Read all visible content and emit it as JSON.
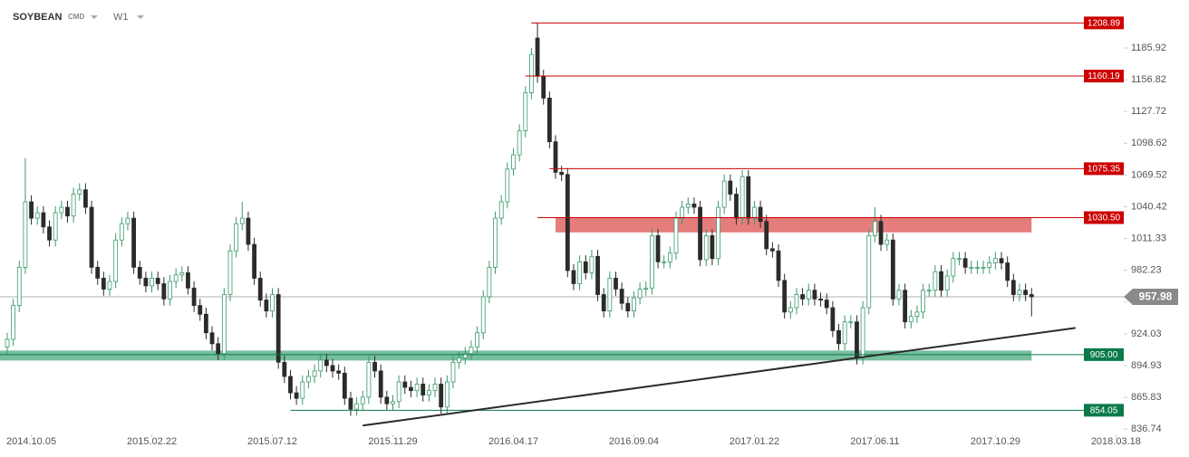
{
  "header": {
    "symbol": "SOYBEAN",
    "market": "CMD",
    "timeframe": "W1"
  },
  "chart_data": {
    "type": "candlestick",
    "up_color": "#3a9a6a",
    "down_color": "#2b2b2b",
    "xlim": [
      -1.2,
      185.3
    ],
    "xticks": [
      {
        "value": 4,
        "label": "2014.10.05"
      },
      {
        "value": 24,
        "label": "2015.02.22"
      },
      {
        "value": 44,
        "label": "2015.07.12"
      },
      {
        "value": 64,
        "label": "2015.11.29"
      },
      {
        "value": 84,
        "label": "2016.04.17"
      },
      {
        "value": 104,
        "label": "2016.09.04"
      },
      {
        "value": 124,
        "label": "2017.01.22"
      },
      {
        "value": 144,
        "label": "2017.06.11"
      },
      {
        "value": 164,
        "label": "2017.10.29"
      },
      {
        "value": 184,
        "label": "2018.03.18"
      }
    ],
    "ylim": [
      831.94,
      1229.88
    ],
    "yticks": [
      1185.92,
      1156.82,
      1127.72,
      1098.62,
      1069.52,
      1040.42,
      1011.33,
      982.23,
      953.13,
      924.03,
      894.93,
      865.83,
      836.74
    ],
    "candles": [
      [
        912,
        925,
        906,
        919
      ],
      [
        919,
        956,
        913,
        950
      ],
      [
        950,
        991,
        944,
        985
      ],
      [
        985,
        1085,
        979,
        1045
      ],
      [
        1045,
        1051,
        1024,
        1030
      ],
      [
        1030,
        1041,
        1024,
        1035
      ],
      [
        1035,
        1041,
        1016,
        1022
      ],
      [
        1022,
        1028,
        1004,
        1010
      ],
      [
        1010,
        1041,
        1004,
        1035
      ],
      [
        1035,
        1046,
        1029,
        1040
      ],
      [
        1040,
        1046,
        1026,
        1032
      ],
      [
        1032,
        1058,
        1026,
        1052
      ],
      [
        1052,
        1062,
        1046,
        1056
      ],
      [
        1056,
        1062,
        1034,
        1040
      ],
      [
        1040,
        1046,
        979,
        985
      ],
      [
        985,
        991,
        969,
        975
      ],
      [
        975,
        981,
        959,
        965
      ],
      [
        965,
        978,
        959,
        972
      ],
      [
        972,
        1016,
        966,
        1010
      ],
      [
        1010,
        1031,
        1004,
        1025
      ],
      [
        1025,
        1036,
        1019,
        1030
      ],
      [
        1030,
        1036,
        979,
        985
      ],
      [
        985,
        991,
        969,
        975
      ],
      [
        975,
        981,
        962,
        968
      ],
      [
        968,
        981,
        962,
        975
      ],
      [
        975,
        981,
        964,
        970
      ],
      [
        970,
        976,
        950,
        956
      ],
      [
        956,
        978,
        950,
        972
      ],
      [
        972,
        984,
        966,
        978
      ],
      [
        978,
        986,
        972,
        980
      ],
      [
        980,
        986,
        960,
        966
      ],
      [
        966,
        972,
        944,
        950
      ],
      [
        950,
        956,
        936,
        942
      ],
      [
        942,
        948,
        919,
        925
      ],
      [
        925,
        931,
        909,
        915
      ],
      [
        915,
        921,
        900,
        906
      ],
      [
        906,
        966,
        900,
        960
      ],
      [
        960,
        1006,
        954,
        1000
      ],
      [
        1000,
        1031,
        994,
        1025
      ],
      [
        1025,
        1045,
        1019,
        1030
      ],
      [
        1030,
        1036,
        1000,
        1006
      ],
      [
        1006,
        1012,
        969,
        975
      ],
      [
        975,
        981,
        949,
        955
      ],
      [
        955,
        961,
        939,
        945
      ],
      [
        945,
        966,
        939,
        960
      ],
      [
        960,
        966,
        892,
        898
      ],
      [
        898,
        904,
        879,
        885
      ],
      [
        885,
        891,
        864,
        870
      ],
      [
        870,
        876,
        859,
        865
      ],
      [
        865,
        886,
        859,
        880
      ],
      [
        880,
        891,
        874,
        885
      ],
      [
        885,
        896,
        879,
        890
      ],
      [
        890,
        906,
        884,
        900
      ],
      [
        900,
        906,
        889,
        895
      ],
      [
        895,
        901,
        884,
        890
      ],
      [
        890,
        896,
        882,
        888
      ],
      [
        888,
        894,
        859,
        865
      ],
      [
        865,
        871,
        849,
        855
      ],
      [
        855,
        866,
        849,
        860
      ],
      [
        860,
        872,
        854,
        866
      ],
      [
        866,
        904,
        860,
        898
      ],
      [
        898,
        904,
        884,
        890
      ],
      [
        890,
        896,
        860,
        866
      ],
      [
        866,
        872,
        854,
        860
      ],
      [
        860,
        868,
        854,
        862
      ],
      [
        862,
        886,
        856,
        880
      ],
      [
        880,
        886,
        869,
        875
      ],
      [
        875,
        881,
        866,
        872
      ],
      [
        872,
        884,
        866,
        878
      ],
      [
        878,
        884,
        862,
        868
      ],
      [
        868,
        878,
        862,
        872
      ],
      [
        872,
        884,
        866,
        878
      ],
      [
        878,
        884,
        851,
        857
      ],
      [
        857,
        886,
        851,
        880
      ],
      [
        880,
        904,
        874,
        898
      ],
      [
        898,
        908,
        892,
        902
      ],
      [
        902,
        912,
        896,
        906
      ],
      [
        906,
        918,
        900,
        912
      ],
      [
        912,
        931,
        906,
        925
      ],
      [
        925,
        964,
        919,
        958
      ],
      [
        958,
        991,
        952,
        985
      ],
      [
        985,
        1036,
        979,
        1030
      ],
      [
        1030,
        1051,
        1024,
        1045
      ],
      [
        1045,
        1081,
        1039,
        1075
      ],
      [
        1075,
        1094,
        1069,
        1088
      ],
      [
        1088,
        1116,
        1082,
        1110
      ],
      [
        1110,
        1151,
        1104,
        1145
      ],
      [
        1145,
        1186,
        1139,
        1180
      ],
      [
        1195,
        1208.89,
        1154,
        1160
      ],
      [
        1160,
        1166,
        1134,
        1140
      ],
      [
        1140,
        1146,
        1094,
        1100
      ],
      [
        1100,
        1106,
        1066,
        1072
      ],
      [
        1072,
        1078,
        1064,
        1070
      ],
      [
        1070,
        1076,
        976,
        982
      ],
      [
        982,
        988,
        964,
        970
      ],
      [
        970,
        996,
        964,
        990
      ],
      [
        990,
        996,
        974,
        980
      ],
      [
        980,
        1001,
        974,
        995
      ],
      [
        995,
        1001,
        954,
        960
      ],
      [
        960,
        966,
        939,
        945
      ],
      [
        945,
        981,
        939,
        975
      ],
      [
        975,
        981,
        959,
        965
      ],
      [
        965,
        971,
        946,
        952
      ],
      [
        952,
        958,
        939,
        945
      ],
      [
        945,
        963,
        939,
        957
      ],
      [
        957,
        971,
        951,
        965
      ],
      [
        965,
        972,
        959,
        966
      ],
      [
        966,
        1020,
        960,
        1014
      ],
      [
        1014,
        1020,
        984,
        990
      ],
      [
        990,
        996,
        984,
        990
      ],
      [
        990,
        1004,
        984,
        998
      ],
      [
        998,
        1036,
        992,
        1030
      ],
      [
        1030,
        1046,
        1024,
        1040
      ],
      [
        1040,
        1049,
        1034,
        1043
      ],
      [
        1043,
        1049,
        1034,
        1040
      ],
      [
        1040,
        1046,
        986,
        992
      ],
      [
        992,
        1020,
        986,
        1014
      ],
      [
        1014,
        1020,
        987,
        993
      ],
      [
        993,
        1046,
        987,
        1040
      ],
      [
        1040,
        1070,
        1034,
        1064
      ],
      [
        1064,
        1070,
        1046,
        1052
      ],
      [
        1052,
        1058,
        1024,
        1030
      ],
      [
        1030,
        1074,
        1024,
        1068
      ],
      [
        1068,
        1074,
        1024,
        1030
      ],
      [
        1030,
        1046,
        1024,
        1040
      ],
      [
        1040,
        1046,
        1021,
        1027
      ],
      [
        1027,
        1033,
        996,
        1002
      ],
      [
        1002,
        1008,
        994,
        1000
      ],
      [
        1000,
        1006,
        967,
        973
      ],
      [
        973,
        979,
        938,
        944
      ],
      [
        944,
        954,
        938,
        948
      ],
      [
        948,
        966,
        942,
        960
      ],
      [
        960,
        966,
        950,
        956
      ],
      [
        956,
        970,
        950,
        964
      ],
      [
        964,
        970,
        950,
        956
      ],
      [
        956,
        962,
        949,
        955
      ],
      [
        955,
        961,
        942,
        948
      ],
      [
        948,
        954,
        921,
        927
      ],
      [
        927,
        933,
        909,
        915
      ],
      [
        915,
        941,
        909,
        935
      ],
      [
        935,
        941,
        929,
        935
      ],
      [
        935,
        941,
        896,
        902
      ],
      [
        902,
        954,
        896,
        948
      ],
      [
        948,
        1020,
        942,
        1014
      ],
      [
        1014,
        1040,
        1008,
        1027
      ],
      [
        1027,
        1033,
        1000,
        1006
      ],
      [
        1006,
        1016,
        1000,
        1010
      ],
      [
        1010,
        1016,
        950,
        956
      ],
      [
        956,
        970,
        950,
        964
      ],
      [
        964,
        970,
        929,
        935
      ],
      [
        935,
        946,
        929,
        940
      ],
      [
        940,
        950,
        934,
        944
      ],
      [
        944,
        970,
        938,
        964
      ],
      [
        964,
        970,
        958,
        964
      ],
      [
        964,
        987,
        958,
        981
      ],
      [
        981,
        987,
        958,
        964
      ],
      [
        964,
        983,
        958,
        977
      ],
      [
        977,
        999,
        971,
        993
      ],
      [
        993,
        999,
        987,
        993
      ],
      [
        993,
        999,
        979,
        985
      ],
      [
        985,
        991,
        979,
        985
      ],
      [
        985,
        991,
        979,
        985
      ],
      [
        985,
        991,
        979,
        985
      ],
      [
        985,
        995,
        979,
        989
      ],
      [
        989,
        999,
        983,
        993
      ],
      [
        993,
        999,
        983,
        989
      ],
      [
        989,
        995,
        967,
        973
      ],
      [
        973,
        979,
        954,
        960
      ],
      [
        960,
        970,
        954,
        964
      ],
      [
        964,
        970,
        954,
        960
      ],
      [
        960,
        966,
        940,
        957.98
      ]
    ],
    "levels": [
      {
        "value": 1208.89,
        "color": "#cc0000",
        "from": 87
      },
      {
        "value": 1160.19,
        "color": "#cc0000",
        "from": 86
      },
      {
        "value": 1075.35,
        "color": "#cc0000",
        "from": 90
      },
      {
        "value": 1030.5,
        "label": "1030.50",
        "color": "#cc0000",
        "from": 88
      },
      {
        "value": 905,
        "label": "905.00",
        "color": "#0b7a4b",
        "from": -1.2
      },
      {
        "value": 854.05,
        "color": "#0b7a4b",
        "from": 47
      }
    ],
    "zones": [
      {
        "from": 1017,
        "to": 1030.5,
        "color": "#e06666",
        "x": [
          91,
          170
        ]
      },
      {
        "from": 899.6,
        "to": 908.7,
        "color": "#5fb38c",
        "x": [
          -1.2,
          170
        ]
      }
    ],
    "trendline": {
      "x": [
        59,
        177.3
      ],
      "y": [
        840,
        929.5
      ],
      "color": "#2b2b2b"
    },
    "last_price": 957.98
  }
}
